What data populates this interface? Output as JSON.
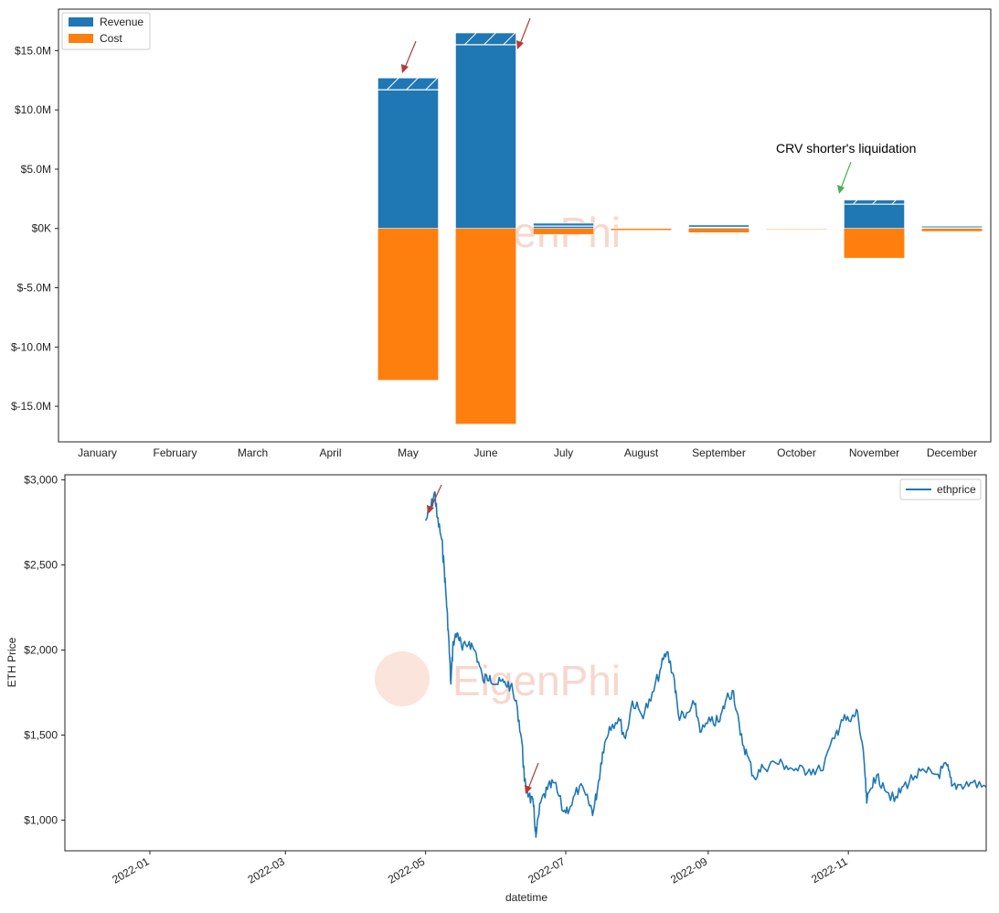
{
  "watermark": "EigenPhi",
  "chart_data": [
    {
      "type": "bar",
      "title": "",
      "xlabel": "",
      "ylabel": "",
      "categories": [
        "January",
        "February",
        "March",
        "April",
        "May",
        "June",
        "July",
        "August",
        "September",
        "October",
        "November",
        "December"
      ],
      "series": [
        {
          "name": "Revenue",
          "color": "#1f77b4",
          "values": [
            0,
            0,
            0,
            0,
            12.7,
            16.5,
            0.45,
            0.05,
            0.3,
            0.03,
            2.4,
            0.2
          ]
        },
        {
          "name": "Cost",
          "color": "#ff7f0e",
          "values": [
            0,
            0,
            0,
            0,
            -12.8,
            -16.5,
            -0.5,
            -0.15,
            -0.35,
            -0.05,
            -2.5,
            -0.25
          ]
        }
      ],
      "hatched_top_revenue": [
        0,
        0,
        0,
        0,
        1.0,
        1.0,
        0.25,
        0.05,
        0.2,
        0.02,
        0.35,
        0.15
      ],
      "ylim": [
        -18.0,
        18.5
      ],
      "yticks": [
        15,
        10,
        5,
        0,
        -5,
        -10,
        -15
      ],
      "ytick_labels": [
        "$15.0M",
        "$10.0M",
        "$5.0M",
        "$0K",
        "$-5.0M",
        "$-10.0M",
        "$-15.0M"
      ],
      "legend": {
        "position": "top-left",
        "entries": [
          "Revenue",
          "Cost"
        ]
      },
      "annotations": [
        {
          "text": "CRV shorter's liquidation",
          "category": "November"
        }
      ],
      "grid": false
    },
    {
      "type": "line",
      "title": "",
      "xlabel": "datetime",
      "ylabel": "ETH Price",
      "xlim": [
        "2021-11-25",
        "2022-12-31"
      ],
      "ylim": [
        820,
        3030
      ],
      "yticks": [
        1000,
        1500,
        2000,
        2500,
        3000
      ],
      "ytick_labels": [
        "$1,000",
        "$1,500",
        "$2,000",
        "$2,500",
        "$3,000"
      ],
      "xticks": [
        "2022-01-01",
        "2022-03-01",
        "2022-05-01",
        "2022-07-01",
        "2022-09-01",
        "2022-11-01"
      ],
      "xtick_labels": [
        "2022-01",
        "2022-03",
        "2022-05",
        "2022-07",
        "2022-09",
        "2022-11"
      ],
      "legend": {
        "position": "top-right",
        "entries": [
          "ethprice"
        ]
      },
      "grid": false,
      "series": [
        {
          "name": "ethprice",
          "color": "#1f77b4",
          "points": [
            [
              "2022-05-01",
              2760
            ],
            [
              "2022-05-03",
              2820
            ],
            [
              "2022-05-05",
              2930
            ],
            [
              "2022-05-06",
              2780
            ],
            [
              "2022-05-08",
              2650
            ],
            [
              "2022-05-09",
              2500
            ],
            [
              "2022-05-10",
              2300
            ],
            [
              "2022-05-11",
              2080
            ],
            [
              "2022-05-12",
              1800
            ],
            [
              "2022-05-13",
              2050
            ],
            [
              "2022-05-15",
              2100
            ],
            [
              "2022-05-17",
              2000
            ],
            [
              "2022-05-20",
              2050
            ],
            [
              "2022-05-23",
              1980
            ],
            [
              "2022-05-26",
              1820
            ],
            [
              "2022-05-29",
              1850
            ],
            [
              "2022-06-01",
              1800
            ],
            [
              "2022-06-04",
              1810
            ],
            [
              "2022-06-07",
              1790
            ],
            [
              "2022-06-10",
              1650
            ],
            [
              "2022-06-12",
              1450
            ],
            [
              "2022-06-13",
              1230
            ],
            [
              "2022-06-15",
              1150
            ],
            [
              "2022-06-17",
              1080
            ],
            [
              "2022-06-18",
              900
            ],
            [
              "2022-06-20",
              1100
            ],
            [
              "2022-06-23",
              1180
            ],
            [
              "2022-06-26",
              1220
            ],
            [
              "2022-06-30",
              1050
            ],
            [
              "2022-07-03",
              1080
            ],
            [
              "2022-07-07",
              1200
            ],
            [
              "2022-07-11",
              1100
            ],
            [
              "2022-07-13",
              1050
            ],
            [
              "2022-07-15",
              1200
            ],
            [
              "2022-07-17",
              1400
            ],
            [
              "2022-07-20",
              1550
            ],
            [
              "2022-07-24",
              1600
            ],
            [
              "2022-07-27",
              1480
            ],
            [
              "2022-07-30",
              1700
            ],
            [
              "2022-08-03",
              1620
            ],
            [
              "2022-08-07",
              1700
            ],
            [
              "2022-08-11",
              1880
            ],
            [
              "2022-08-14",
              1990
            ],
            [
              "2022-08-17",
              1850
            ],
            [
              "2022-08-19",
              1620
            ],
            [
              "2022-08-22",
              1600
            ],
            [
              "2022-08-26",
              1680
            ],
            [
              "2022-08-29",
              1520
            ],
            [
              "2022-09-02",
              1580
            ],
            [
              "2022-09-06",
              1580
            ],
            [
              "2022-09-09",
              1720
            ],
            [
              "2022-09-12",
              1760
            ],
            [
              "2022-09-15",
              1500
            ],
            [
              "2022-09-18",
              1380
            ],
            [
              "2022-09-21",
              1250
            ],
            [
              "2022-09-25",
              1310
            ],
            [
              "2022-09-30",
              1340
            ],
            [
              "2022-10-05",
              1320
            ],
            [
              "2022-10-10",
              1290
            ],
            [
              "2022-10-15",
              1300
            ],
            [
              "2022-10-20",
              1290
            ],
            [
              "2022-10-26",
              1480
            ],
            [
              "2022-10-29",
              1590
            ],
            [
              "2022-11-02",
              1580
            ],
            [
              "2022-11-05",
              1640
            ],
            [
              "2022-11-08",
              1320
            ],
            [
              "2022-11-09",
              1100
            ],
            [
              "2022-11-12",
              1250
            ],
            [
              "2022-11-16",
              1220
            ],
            [
              "2022-11-21",
              1110
            ],
            [
              "2022-11-25",
              1200
            ],
            [
              "2022-11-30",
              1260
            ],
            [
              "2022-12-05",
              1280
            ],
            [
              "2022-12-10",
              1270
            ],
            [
              "2022-12-14",
              1320
            ],
            [
              "2022-12-16",
              1200
            ],
            [
              "2022-12-20",
              1210
            ],
            [
              "2022-12-25",
              1220
            ],
            [
              "2022-12-31",
              1196
            ]
          ]
        }
      ]
    }
  ]
}
